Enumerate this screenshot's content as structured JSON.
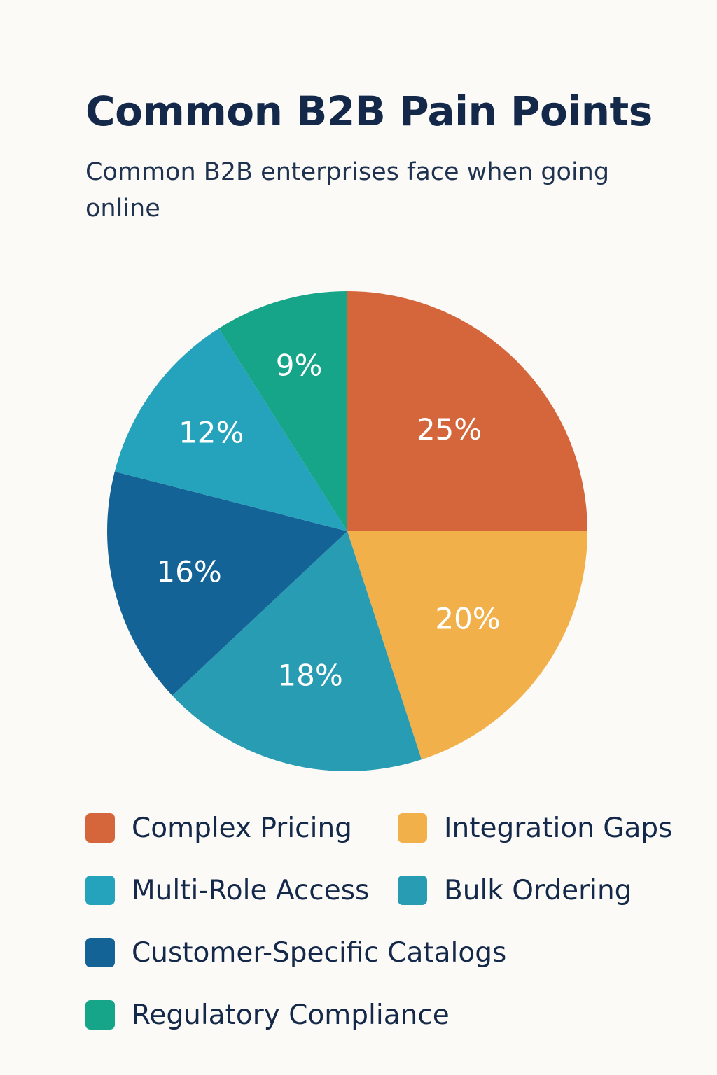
{
  "chart_data": {
    "type": "pie",
    "title": "Common B2B Pain Points",
    "subtitle": "Common B2B enterprises face when going online",
    "slices": [
      {
        "name": "Complex Pricing",
        "value": 25,
        "label": "25%",
        "color": "#d5653a"
      },
      {
        "name": "Integration Gaps",
        "value": 20,
        "label": "20%",
        "color": "#f2b04a"
      },
      {
        "name": "Bulk Ordering",
        "value": 18,
        "label": "18%",
        "color": "#289cb2"
      },
      {
        "name": "Customer-Specific Catalogs",
        "value": 16,
        "label": "16%",
        "color": "#146397"
      },
      {
        "name": "Multi-Role Access",
        "value": 12,
        "label": "12%",
        "color": "#25a3bc"
      },
      {
        "name": "Regulatory Compliance",
        "value": 9,
        "label": "9%",
        "color": "#16a588"
      }
    ],
    "legend": [
      {
        "name": "Complex Pricing",
        "color": "#d5653a"
      },
      {
        "name": "Integration Gaps",
        "color": "#f2b04a"
      },
      {
        "name": "Multi-Role Access",
        "color": "#25a3bc"
      },
      {
        "name": "Bulk Ordering",
        "color": "#289cb2"
      },
      {
        "name": "Customer-Specific Catalogs",
        "color": "#146397"
      },
      {
        "name": "Regulatory Compliance",
        "color": "#16a588"
      }
    ],
    "legend_placement": "bottom"
  }
}
